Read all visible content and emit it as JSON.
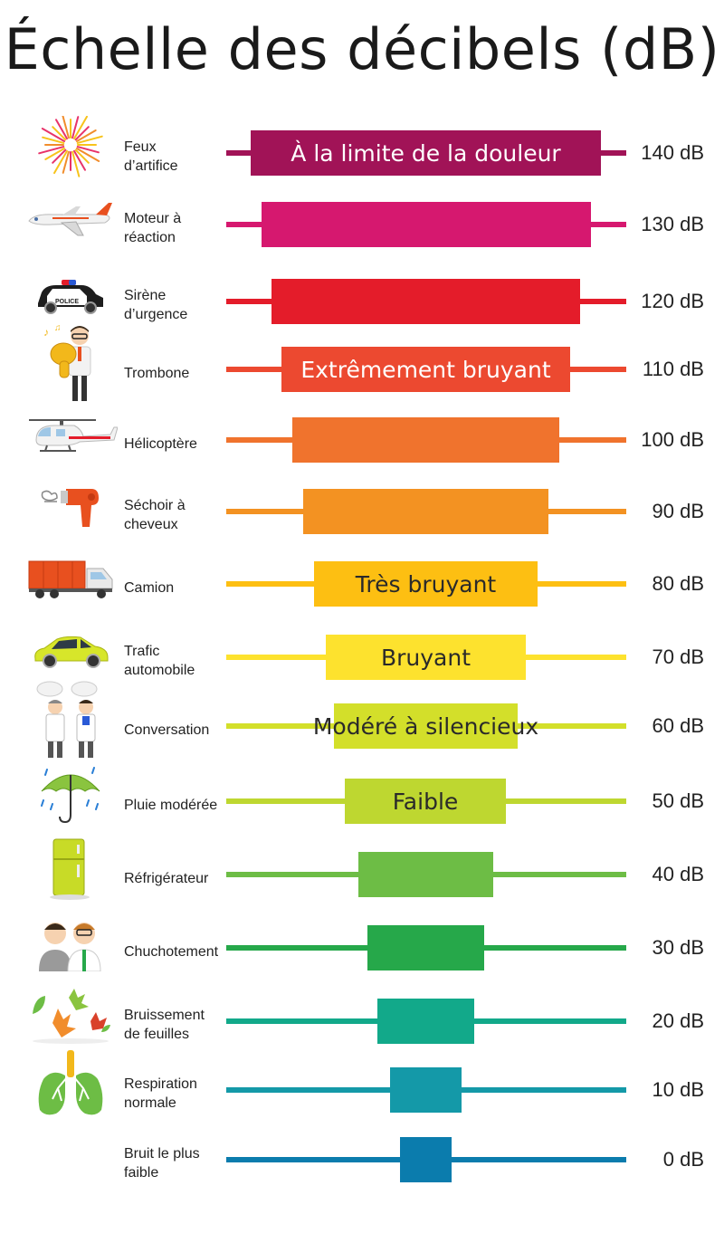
{
  "title": "Échelle des décibels (dB)",
  "rows": [
    {
      "source": "Feux\nd’artifice",
      "db": "140 dB",
      "bar_label": "À la limite de la douleur",
      "color": "#a11357",
      "text_color": "#ffffff",
      "icon": "fireworks-icon"
    },
    {
      "source": "Moteur à\nréaction",
      "db": "130 dB",
      "bar_label": "",
      "color": "#d6186f",
      "text_color": "#ffffff",
      "icon": "airplane-icon"
    },
    {
      "source": "Sirène\nd’urgence",
      "db": "120 dB",
      "bar_label": "",
      "color": "#e41c2a",
      "text_color": "#ffffff",
      "icon": "police-car-icon"
    },
    {
      "source": "Trombone",
      "db": "110 dB",
      "bar_label": "Extrêmement bruyant",
      "color": "#ec4930",
      "text_color": "#ffffff",
      "icon": "trombone-player-icon"
    },
    {
      "source": "Hélicoptère",
      "db": "100 dB",
      "bar_label": "",
      "color": "#f0732d",
      "text_color": "#ffffff",
      "icon": "helicopter-icon"
    },
    {
      "source": "Séchoir à\ncheveux",
      "db": "90 dB",
      "bar_label": "",
      "color": "#f39222",
      "text_color": "#ffffff",
      "icon": "hair-dryer-icon"
    },
    {
      "source": "Camion",
      "db": "80 dB",
      "bar_label": "Très bruyant",
      "color": "#fdbf12",
      "text_color": "#2a2a2a",
      "icon": "truck-icon"
    },
    {
      "source": "Trafic\nautomobile",
      "db": "70 dB",
      "bar_label": "Bruyant",
      "color": "#fde22e",
      "text_color": "#2a2a2a",
      "icon": "car-icon"
    },
    {
      "source": "Conversation",
      "db": "60 dB",
      "bar_label": "Modéré à silencieux",
      "color": "#d3df2a",
      "text_color": "#2a2a2a",
      "icon": "conversation-icon"
    },
    {
      "source": "Pluie modérée",
      "db": "50 dB",
      "bar_label": "Faible",
      "color": "#bed730",
      "text_color": "#2a2a2a",
      "icon": "umbrella-rain-icon"
    },
    {
      "source": "Réfrigérateur",
      "db": "40 dB",
      "bar_label": "",
      "color": "#6dbd45",
      "text_color": "#ffffff",
      "icon": "refrigerator-icon"
    },
    {
      "source": "Chuchotement",
      "db": "30 dB",
      "bar_label": "",
      "color": "#26a84a",
      "text_color": "#ffffff",
      "icon": "whisper-icon"
    },
    {
      "source": "Bruissement\nde feuilles",
      "db": "20 dB",
      "bar_label": "",
      "color": "#12a98a",
      "text_color": "#ffffff",
      "icon": "leaves-icon"
    },
    {
      "source": "Respiration\nnormale",
      "db": "10 dB",
      "bar_label": "",
      "color": "#1499a8",
      "text_color": "#ffffff",
      "icon": "lungs-icon"
    },
    {
      "source": "Bruit le plus\nfaible",
      "db": "0 dB",
      "bar_label": "",
      "color": "#0b7cad",
      "text_color": "#ffffff",
      "icon": ""
    }
  ]
}
